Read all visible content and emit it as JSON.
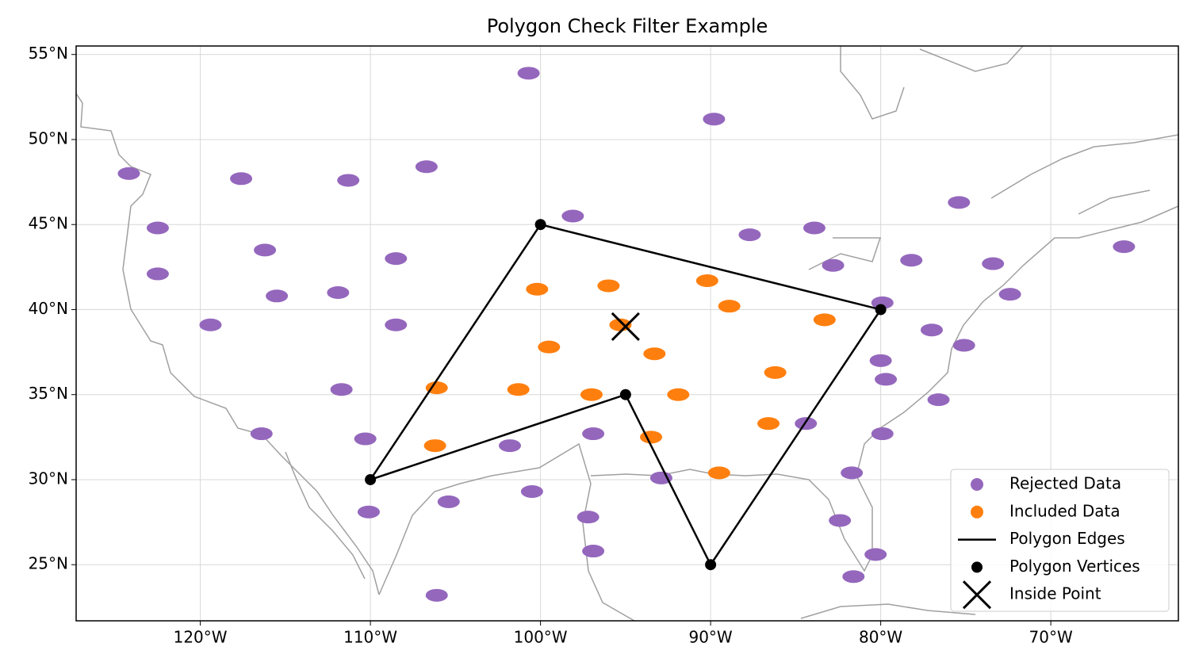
{
  "chart_data": {
    "type": "scatter",
    "title": "Polygon Check Filter Example",
    "xlim": [
      -127.3,
      -62.5
    ],
    "ylim": [
      21.7,
      55.5
    ],
    "xticks": [
      {
        "value": -120,
        "label": "120°W"
      },
      {
        "value": -110,
        "label": "110°W"
      },
      {
        "value": -100,
        "label": "100°W"
      },
      {
        "value": -90,
        "label": "90°W"
      },
      {
        "value": -80,
        "label": "80°W"
      },
      {
        "value": -70,
        "label": "70°W"
      }
    ],
    "yticks": [
      {
        "value": 25,
        "label": "25°N"
      },
      {
        "value": 30,
        "label": "30°N"
      },
      {
        "value": 35,
        "label": "35°N"
      },
      {
        "value": 40,
        "label": "40°N"
      },
      {
        "value": 45,
        "label": "45°N"
      },
      {
        "value": 50,
        "label": "50°N"
      },
      {
        "value": 55,
        "label": "55°N"
      }
    ],
    "grid": true,
    "legend": "lower right",
    "series": [
      {
        "name": "Rejected Data",
        "color": "#9467bd",
        "marker": "blob",
        "x": [
          -124.2,
          -122.5,
          -122.5,
          -119.4,
          -117.6,
          -116.2,
          -115.5,
          -116.4,
          -111.9,
          -111.3,
          -111.7,
          -110.3,
          -110.1,
          -108.5,
          -108.5,
          -106.7,
          -105.4,
          -106.1,
          -101.8,
          -100.7,
          -100.5,
          -98.1,
          -96.9,
          -97.2,
          -96.9,
          -92.9,
          -89.8,
          -87.7,
          -83.9,
          -82.8,
          -79.9,
          -80.0,
          -79.7,
          -79.9,
          -84.4,
          -81.7,
          -82.4,
          -81.6,
          -80.3,
          -78.2,
          -77.0,
          -75.1,
          -76.6,
          -75.4,
          -73.4,
          -72.4,
          -65.7
        ],
        "values": [
          48.0,
          44.8,
          42.1,
          39.1,
          47.7,
          43.5,
          40.8,
          32.7,
          41.0,
          47.6,
          35.3,
          32.4,
          28.1,
          43.0,
          39.1,
          48.4,
          28.7,
          23.2,
          32.0,
          53.9,
          29.3,
          45.5,
          32.7,
          27.8,
          25.8,
          30.1,
          51.2,
          44.4,
          44.8,
          42.6,
          40.4,
          37.0,
          35.9,
          32.7,
          33.3,
          30.4,
          27.6,
          24.3,
          25.6,
          42.9,
          38.8,
          37.9,
          34.7,
          46.3,
          42.7,
          40.9,
          43.7
        ]
      },
      {
        "name": "Included Data",
        "color": "#ff7f0e",
        "marker": "blob",
        "x": [
          -100.2,
          -96.0,
          -90.2,
          -88.9,
          -95.3,
          -83.3,
          -99.5,
          -93.3,
          -86.2,
          -106.1,
          -101.3,
          -97.0,
          -91.9,
          -106.2,
          -93.5,
          -86.6,
          -89.5
        ],
        "values": [
          41.2,
          41.4,
          41.7,
          40.2,
          39.1,
          39.4,
          37.8,
          37.4,
          36.3,
          35.4,
          35.3,
          35.0,
          35.0,
          32.0,
          32.5,
          33.3,
          30.4
        ]
      },
      {
        "name": "Polygon Edges",
        "color": "#000000",
        "marker": "line",
        "x": [
          -110,
          -100,
          -80,
          -90,
          -95,
          -110
        ],
        "values": [
          30,
          45,
          40,
          25,
          35,
          30
        ]
      },
      {
        "name": "Polygon Vertices",
        "color": "#000000",
        "marker": "dot",
        "x": [
          -110,
          -100,
          -80,
          -90,
          -95
        ],
        "values": [
          30,
          45,
          40,
          25,
          35
        ]
      },
      {
        "name": "Inside Point",
        "color": "#000000",
        "marker": "x",
        "x": [
          -95
        ],
        "values": [
          39
        ]
      }
    ]
  }
}
